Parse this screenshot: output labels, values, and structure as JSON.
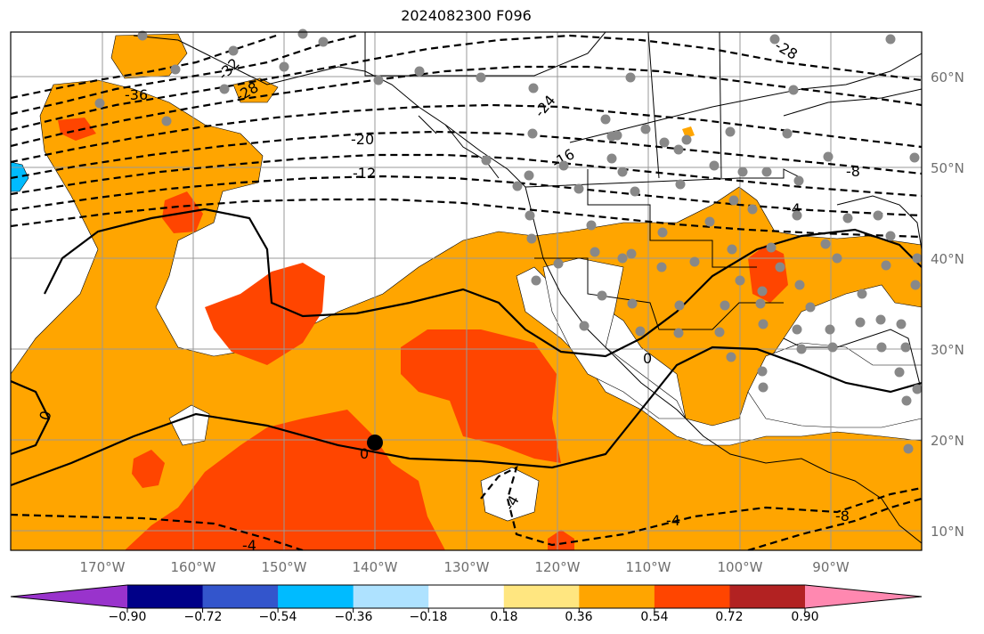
{
  "title": "2024082300 F096",
  "lat_labels": [
    "60°N",
    "50°N",
    "40°N",
    "30°N",
    "20°N",
    "10°N"
  ],
  "lon_labels": [
    "170°W",
    "160°W",
    "150°W",
    "140°W",
    "130°W",
    "120°W",
    "110°W",
    "100°W",
    "90°W"
  ],
  "colorbar": {
    "colors": [
      "#9933cc",
      "#000088",
      "#3355cc",
      "#00bbff",
      "#aee2ff",
      "#ffffff",
      "#ffe680",
      "#ffa500",
      "#ff4500",
      "#b22222",
      "#ff88b0"
    ],
    "tick_labels": [
      "−0.90",
      "−0.72",
      "−0.54",
      "−0.36",
      "−0.18",
      "0.18",
      "0.36",
      "0.54",
      "0.72",
      "0.90"
    ]
  },
  "contour_labels": [
    "-32",
    "-36",
    "-28",
    "-24",
    "-20",
    "-16",
    "-12",
    "-8",
    "-4",
    "0",
    "0",
    "0",
    "-4",
    "-4",
    "-4",
    "-8",
    "-28"
  ],
  "marker": {
    "label_lon": "140°W",
    "label_lat": "20°N"
  }
}
